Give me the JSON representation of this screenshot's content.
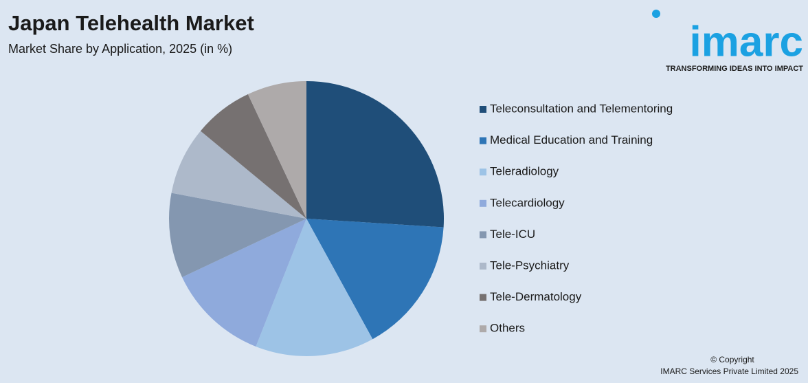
{
  "chart_data": {
    "type": "pie",
    "title": "Japan Telehealth Market",
    "subtitle": "Market Share by Application, 2025 (in %)",
    "categories": [
      "Teleconsultation and Telementoring",
      "Medical Education and Training",
      "Teleradiology",
      "Telecardiology",
      "Tele-ICU",
      "Tele-Psychiatry",
      "Tele-Dermatology",
      "Others"
    ],
    "values": [
      26,
      16,
      14,
      12,
      10,
      8,
      7,
      7
    ],
    "colors": [
      "#1f4e79",
      "#2e75b6",
      "#9dc3e6",
      "#8faadc",
      "#8497b0",
      "#adb9ca",
      "#767171",
      "#aeaaaa"
    ],
    "legend": "right"
  },
  "logo": {
    "name": "imarc",
    "tagline": "TRANSFORMING IDEAS INTO IMPACT"
  },
  "footer": {
    "copyright": "© Copyright",
    "company": "IMARC Services Private Limited 2025"
  }
}
